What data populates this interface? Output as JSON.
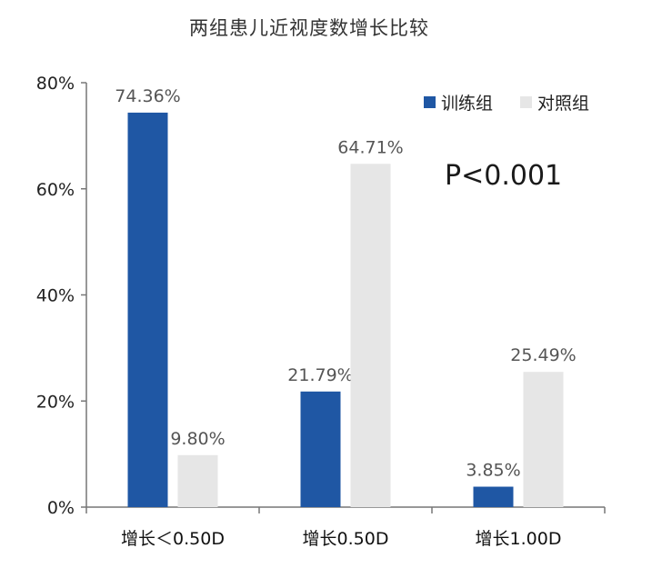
{
  "chart_data": {
    "type": "bar",
    "title": "两组患儿近视度数增长比较",
    "categories": [
      "增长＜0.50D",
      "增长0.50D",
      "增长1.00D"
    ],
    "series": [
      {
        "name": "训练组",
        "values": [
          74.36,
          21.79,
          3.85
        ],
        "labels": [
          "74.36%",
          "21.79%",
          "3.85%"
        ],
        "color": "#1f57a4"
      },
      {
        "name": "对照组",
        "values": [
          9.8,
          64.71,
          25.49
        ],
        "labels": [
          "9.80%",
          "64.71%",
          "25.49%"
        ],
        "color": "#e6e6e6"
      }
    ],
    "yticks": [
      "0%",
      "20%",
      "40%",
      "60%",
      "80%"
    ],
    "ylim": [
      0,
      80
    ],
    "ylabel": "",
    "xlabel": "",
    "grid": false,
    "legend_position": "top-right",
    "annotation": "P<0.001"
  }
}
